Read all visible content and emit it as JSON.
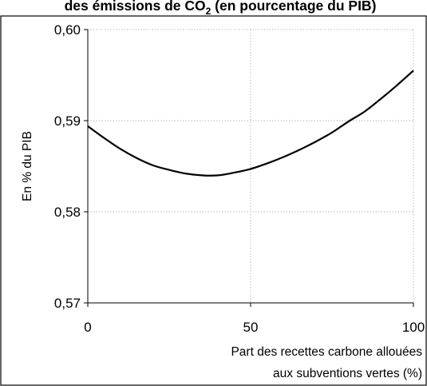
{
  "chart_data": {
    "type": "line",
    "title_parts": {
      "before": "des émissions de CO",
      "subscript": "2",
      "after": " (en pourcentage du PIB)"
    },
    "xlabel_lines": [
      "Part des recettes carbone allouées",
      "aux subventions vertes (%)"
    ],
    "ylabel": "En % du PIB",
    "xlim": [
      0,
      100
    ],
    "ylim": [
      0.57,
      0.6
    ],
    "x_ticks": [
      0,
      50,
      100
    ],
    "x_tick_labels": [
      "0",
      "50",
      "100"
    ],
    "y_ticks": [
      0.57,
      0.58,
      0.59,
      0.6
    ],
    "y_tick_labels": [
      "0,57",
      "0,58",
      "0,59",
      "0,60"
    ],
    "grid": true,
    "line_color": "#000000",
    "grid_color": "#bbbbbb",
    "series": [
      {
        "x": [
          0,
          5,
          10,
          15,
          20,
          25,
          30,
          35,
          40,
          45,
          50,
          55,
          60,
          65,
          70,
          75,
          80,
          85,
          90,
          95,
          100
        ],
        "values": [
          0.5894,
          0.5881,
          0.5869,
          0.5859,
          0.5851,
          0.5846,
          0.5842,
          0.584,
          0.584,
          0.5843,
          0.5847,
          0.5853,
          0.586,
          0.5868,
          0.5877,
          0.5887,
          0.5899,
          0.591,
          0.5924,
          0.5939,
          0.5955
        ]
      }
    ]
  }
}
